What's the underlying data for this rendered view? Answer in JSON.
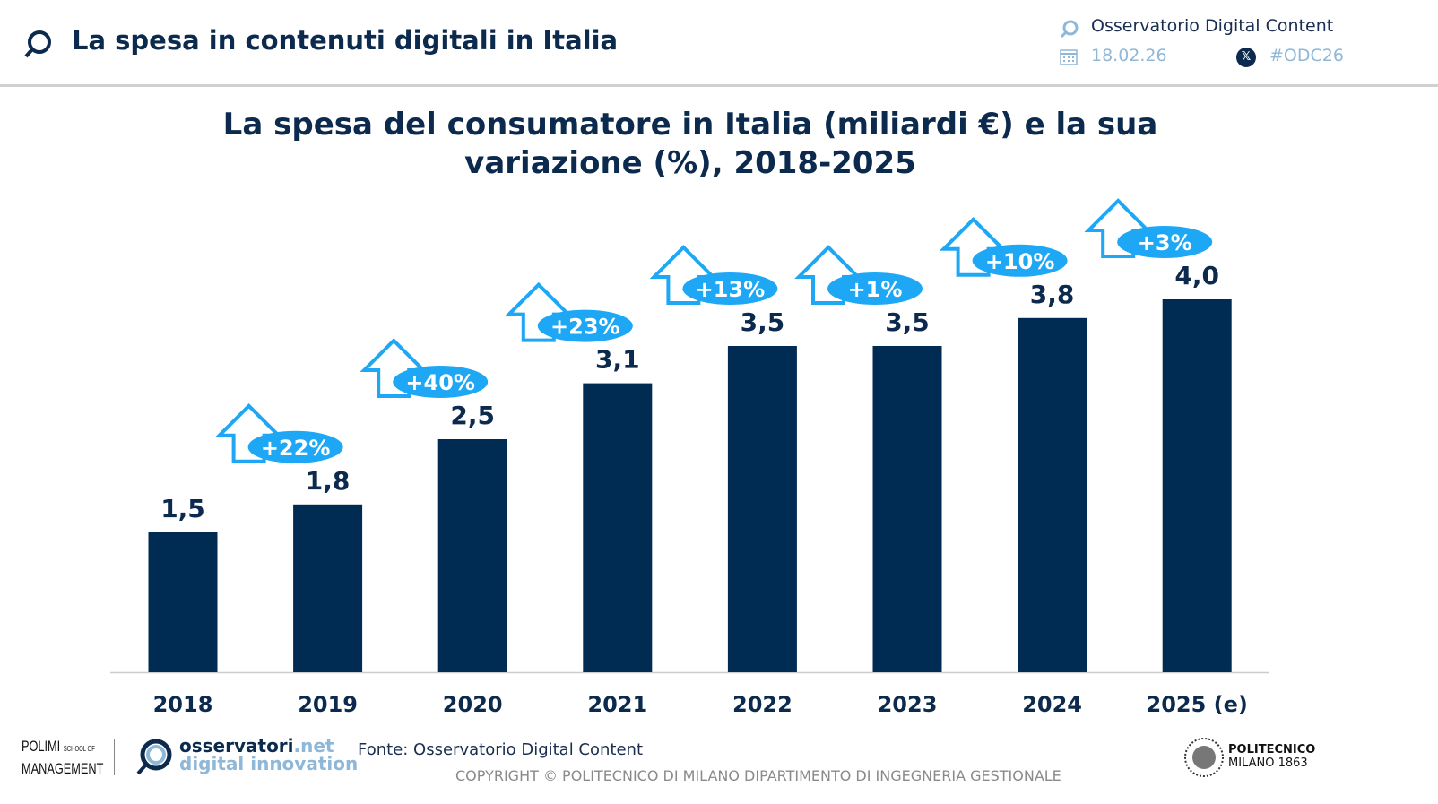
{
  "header": {
    "title": "La spesa in contenuti digitali in Italia",
    "observatory": "Osservatorio Digital Content",
    "date": "18.02.26",
    "hashtag": "#ODC26"
  },
  "chart_data": {
    "type": "bar",
    "title": "La spesa del consumatore in Italia (miliardi €) e la sua variazione (%), 2018-2025",
    "categories": [
      "2018",
      "2019",
      "2020",
      "2021",
      "2022",
      "2023",
      "2024",
      "2025 (e)"
    ],
    "values": [
      1.5,
      1.8,
      2.5,
      3.1,
      3.5,
      3.5,
      3.8,
      4.0
    ],
    "value_labels": [
      "1,5",
      "1,8",
      "2,5",
      "3,1",
      "3,5",
      "3,5",
      "3,8",
      "4,0"
    ],
    "growth_labels": [
      "",
      "+22%",
      "+40%",
      "+23%",
      "+13%",
      "+1%",
      "+10%",
      "+3%"
    ],
    "bar_color": "#002b53",
    "badge_color": "#1ea7f5",
    "grid": false
  },
  "footer": {
    "source": "Fonte: Osservatorio Digital Content",
    "copyright": "COPYRIGHT © POLITECNICO DI MILANO DIPARTIMENTO DI INGEGNERIA GESTIONALE",
    "logo_polimi": "POLIMI SCHOOL OF MANAGEMENT",
    "logo_osservatori_1": "osservatori",
    "logo_osservatori_net": ".net",
    "logo_osservatori_2": "digital innovation",
    "logo_politecnico_1": "POLITECNICO",
    "logo_politecnico_2": "MILANO 1863"
  }
}
